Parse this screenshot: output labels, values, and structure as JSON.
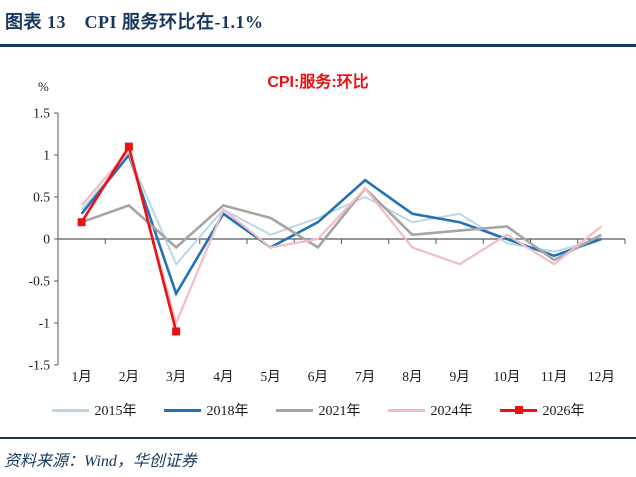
{
  "header": {
    "title": "图表 13　CPI 服务环比在-1.1%"
  },
  "footer": {
    "source": "资料来源：Wind，华创证券"
  },
  "theme": {
    "header_navy": "#17375e",
    "chart_title_red": "#ea1010",
    "axis_color": "#595959",
    "label_color": "#1a1a1a"
  },
  "chart_data": {
    "type": "line",
    "title": "CPI:服务:环比",
    "ylabel": "%",
    "ylim": [
      -1.5,
      1.5
    ],
    "ytick_step": 0.5,
    "grid": false,
    "legend_position": "bottom",
    "categories": [
      "1月",
      "2月",
      "3月",
      "4月",
      "5月",
      "6月",
      "7月",
      "8月",
      "9月",
      "10月",
      "11月",
      "12月"
    ],
    "series": [
      {
        "name": "2015年",
        "color": "#b9d7e9",
        "width": 2,
        "marker": "none",
        "values": [
          0.35,
          1.0,
          -0.3,
          0.35,
          0.05,
          0.25,
          0.5,
          0.2,
          0.3,
          -0.05,
          -0.15,
          0.0
        ]
      },
      {
        "name": "2018年",
        "color": "#2272b6",
        "width": 2.6,
        "marker": "none",
        "values": [
          0.3,
          1.0,
          -0.65,
          0.3,
          -0.1,
          0.2,
          0.7,
          0.3,
          0.2,
          0.0,
          -0.2,
          0.0
        ]
      },
      {
        "name": "2021年",
        "color": "#a5a5a5",
        "width": 2.6,
        "marker": "none",
        "values": [
          0.2,
          0.4,
          -0.1,
          0.4,
          0.25,
          -0.1,
          0.6,
          0.05,
          0.1,
          0.15,
          -0.25,
          0.05
        ]
      },
      {
        "name": "2024年",
        "color": "#f1bdc2",
        "width": 2.2,
        "marker": "none",
        "values": [
          0.4,
          1.05,
          -1.0,
          0.35,
          -0.1,
          0.0,
          0.6,
          -0.1,
          -0.3,
          0.05,
          -0.3,
          0.15
        ]
      },
      {
        "name": "2026年",
        "color": "#ee1111",
        "width": 2.6,
        "marker": "square",
        "values": [
          0.2,
          1.1,
          -1.1,
          null,
          null,
          null,
          null,
          null,
          null,
          null,
          null,
          null
        ]
      }
    ]
  }
}
